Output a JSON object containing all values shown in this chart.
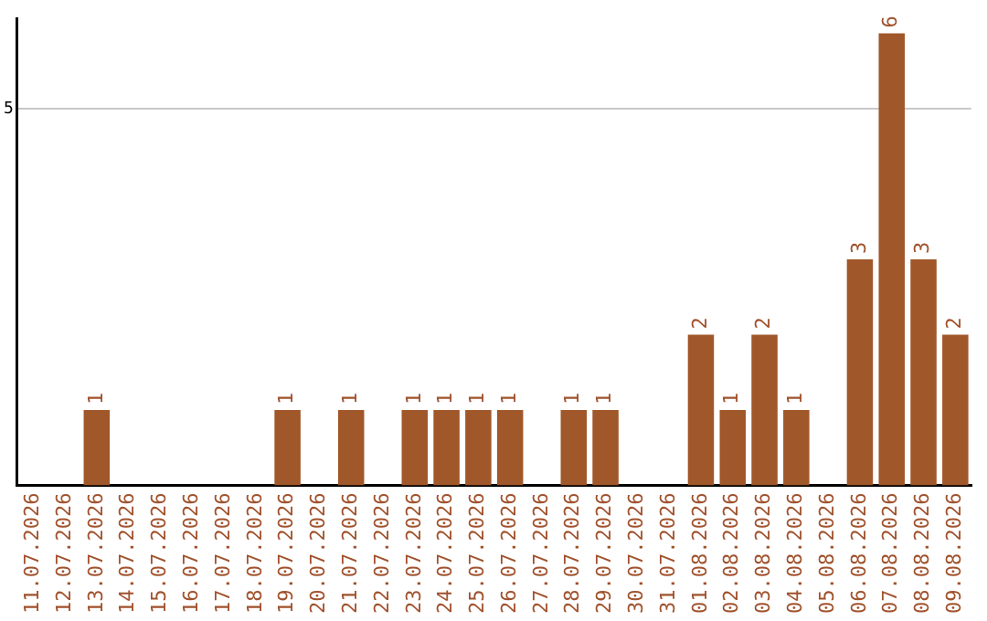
{
  "chart_data": {
    "type": "bar",
    "categories": [
      "11.07.2026",
      "12.07.2026",
      "13.07.2026",
      "14.07.2026",
      "15.07.2026",
      "16.07.2026",
      "17.07.2026",
      "18.07.2026",
      "19.07.2026",
      "20.07.2026",
      "21.07.2026",
      "22.07.2026",
      "23.07.2026",
      "24.07.2026",
      "25.07.2026",
      "26.07.2026",
      "27.07.2026",
      "28.07.2026",
      "29.07.2026",
      "30.07.2026",
      "31.07.2026",
      "01.08.2026",
      "02.08.2026",
      "03.08.2026",
      "04.08.2026",
      "05.08.2026",
      "06.08.2026",
      "07.08.2026",
      "08.08.2026",
      "09.08.2026"
    ],
    "values": [
      0,
      0,
      1,
      0,
      0,
      0,
      0,
      0,
      1,
      0,
      1,
      0,
      1,
      1,
      1,
      1,
      0,
      1,
      1,
      0,
      0,
      2,
      1,
      2,
      1,
      0,
      3,
      6,
      3,
      2
    ],
    "value_labels": [
      null,
      null,
      "1",
      null,
      null,
      null,
      null,
      null,
      "1",
      null,
      "1",
      null,
      "1",
      "1",
      "1",
      "1",
      null,
      "1",
      "1",
      null,
      null,
      "2",
      "1",
      "2",
      "1",
      null,
      "3",
      "6",
      "3",
      "2"
    ],
    "color": "#a0572a",
    "ylim": [
      0,
      6.2
    ],
    "yticks": [
      5
    ],
    "grid": "y",
    "legend": false
  }
}
